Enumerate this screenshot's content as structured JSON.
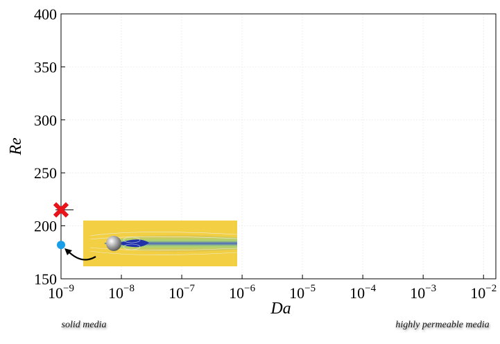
{
  "chart_data": {
    "type": "scatter",
    "x_label": "Da",
    "y_label": "Re",
    "xscale": "log",
    "grid": true,
    "xlim": [
      1e-09,
      0.016
    ],
    "ylim": [
      150,
      400
    ],
    "xticks": [
      {
        "value": 1e-09,
        "label": "10−9"
      },
      {
        "value": 1e-08,
        "label": "10−8"
      },
      {
        "value": 1e-07,
        "label": "10−7"
      },
      {
        "value": 1e-06,
        "label": "10−6"
      },
      {
        "value": 1e-05,
        "label": "10−5"
      },
      {
        "value": 0.0001,
        "label": "10−4"
      },
      {
        "value": 0.001,
        "label": "10−3"
      },
      {
        "value": 0.01,
        "label": "10−2"
      }
    ],
    "yticks": [
      150,
      200,
      250,
      300,
      350,
      400
    ],
    "points": [
      {
        "x": 1e-09,
        "y": 182,
        "color": "#1a9ee8",
        "marker": "circle"
      },
      {
        "x": 1e-09,
        "y": 215,
        "color": "#e8141a",
        "marker": "cross"
      }
    ],
    "annotations": [
      "solid media",
      "highly permeable media"
    ]
  }
}
